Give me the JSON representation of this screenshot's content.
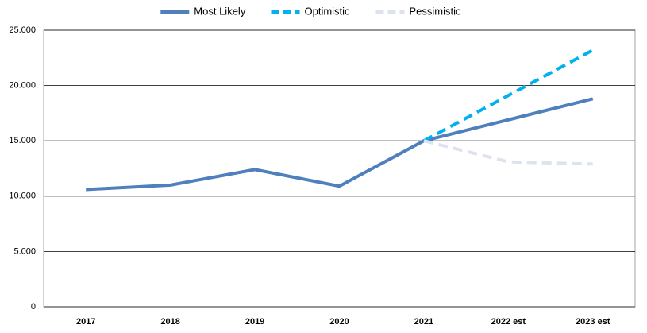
{
  "chart_data": {
    "type": "line",
    "categories": [
      "2017",
      "2018",
      "2019",
      "2020",
      "2021",
      "2022 est",
      "2023 est"
    ],
    "series": [
      {
        "name": "Most Likely",
        "color": "#4f7fbc",
        "dashed": false,
        "values": [
          10600,
          11000,
          12400,
          10900,
          15000,
          16900,
          18800
        ]
      },
      {
        "name": "Optimistic",
        "color": "#00b0f0",
        "dashed": true,
        "values": [
          null,
          null,
          null,
          null,
          15000,
          19100,
          23200
        ]
      },
      {
        "name": "Pessimistic",
        "color": "#dce3ef",
        "dashed": true,
        "values": [
          null,
          null,
          null,
          null,
          15000,
          13100,
          12900
        ]
      }
    ],
    "ylim": [
      0,
      25000
    ],
    "yticks": [
      0,
      {
        "value": 5000,
        "label": "5.000"
      },
      {
        "value": 10000,
        "label": "10.000"
      },
      {
        "value": 15000,
        "label": "15.000"
      },
      {
        "value": 20000,
        "label": "20.000"
      },
      {
        "value": 25000,
        "label": "25.000"
      }
    ],
    "grid": true,
    "legend": "top"
  }
}
